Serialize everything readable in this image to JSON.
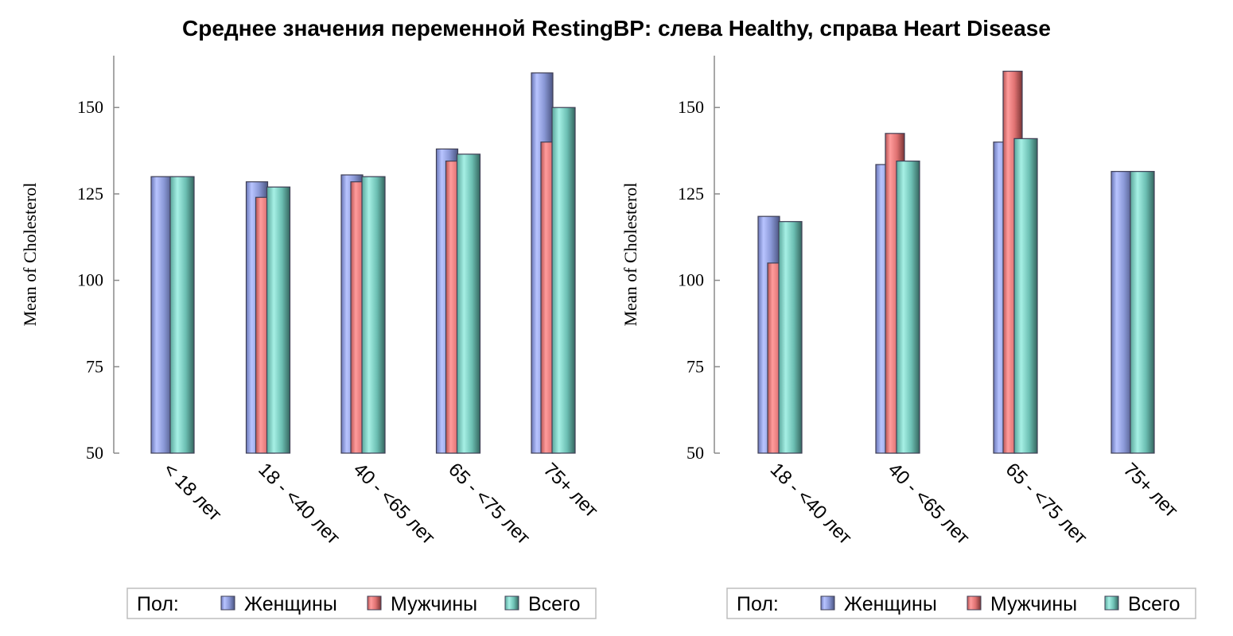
{
  "title": "Среднее значения переменной RestingBP: слева Healthy, справа Heart Disease",
  "chart_data": [
    {
      "type": "bar",
      "panel": "left",
      "ylabel": "Mean of Cholesterol",
      "ylim": [
        50,
        165
      ],
      "yticks": [
        50,
        75,
        100,
        125,
        150
      ],
      "categories": [
        "< 18 лет",
        "18 - <40 лет",
        "40 - <65 лет",
        "65 - <75 лет",
        "75+ лет"
      ],
      "series": [
        {
          "name": "Женщины",
          "color": "#9aa9e8",
          "values": [
            130,
            128.5,
            130.5,
            138,
            160
          ]
        },
        {
          "name": "Мужчины",
          "color": "#f08080",
          "values": [
            null,
            124,
            128.5,
            134.5,
            140
          ]
        },
        {
          "name": "Всего",
          "color": "#7fd3c8",
          "values": [
            130,
            127,
            130,
            136.5,
            150
          ]
        }
      ],
      "legend": {
        "title": "Пол:",
        "placement": "bottom"
      }
    },
    {
      "type": "bar",
      "panel": "right",
      "ylabel": "Mean of Cholesterol",
      "ylim": [
        50,
        165
      ],
      "yticks": [
        50,
        75,
        100,
        125,
        150
      ],
      "categories": [
        "18 - <40 лет",
        "40 - <65 лет",
        "65 - <75 лет",
        "75+ лет"
      ],
      "series": [
        {
          "name": "Женщины",
          "color": "#9aa9e8",
          "values": [
            118.5,
            133.5,
            140,
            131.5
          ]
        },
        {
          "name": "Мужчины",
          "color": "#f08080",
          "values": [
            105,
            142.5,
            160.5,
            null
          ]
        },
        {
          "name": "Всего",
          "color": "#7fd3c8",
          "values": [
            117,
            134.5,
            141,
            131.5
          ]
        }
      ],
      "legend": {
        "title": "Пол:",
        "placement": "bottom"
      }
    }
  ]
}
